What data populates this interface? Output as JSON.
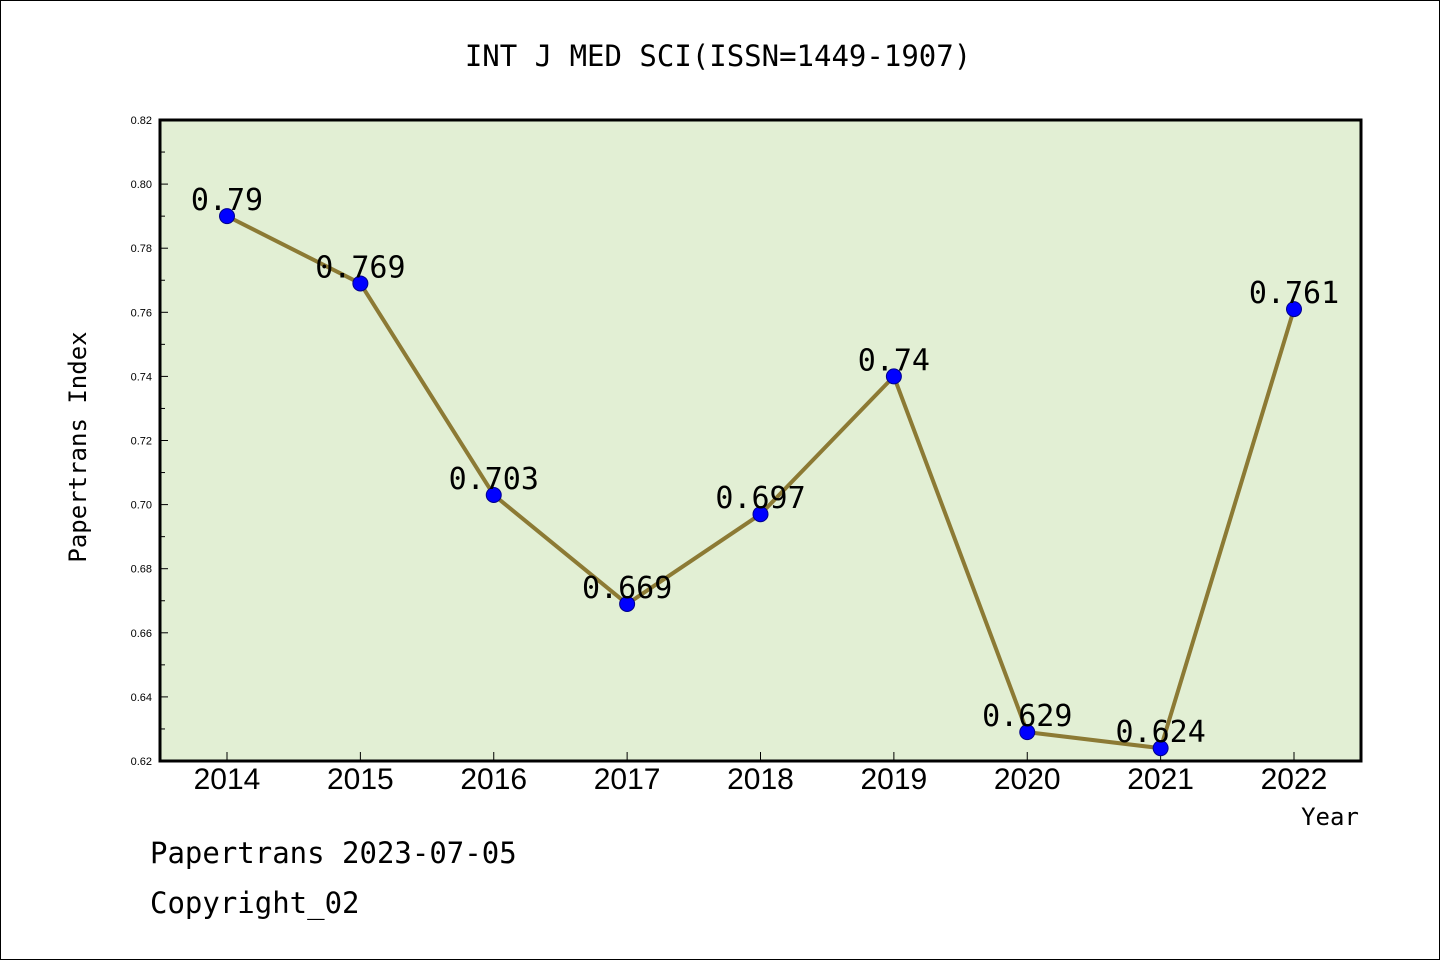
{
  "chart_data": {
    "type": "line",
    "title": "INT J MED SCI(ISSN=1449-1907)",
    "xlabel": "Year",
    "ylabel": "Papertrans Index",
    "categories": [
      "2014",
      "2015",
      "2016",
      "2017",
      "2018",
      "2019",
      "2020",
      "2021",
      "2022"
    ],
    "values": [
      0.79,
      0.769,
      0.703,
      0.669,
      0.697,
      0.74,
      0.629,
      0.624,
      0.761
    ],
    "data_labels": [
      "0.79",
      "0.769",
      "0.703",
      "0.669",
      "0.697",
      "0.74",
      "0.629",
      "0.624",
      "0.761"
    ],
    "ylim": [
      0.62,
      0.82
    ],
    "yticks": [
      "0.62",
      "0.64",
      "0.66",
      "0.68",
      "0.70",
      "0.72",
      "0.74",
      "0.76",
      "0.78",
      "0.80",
      "0.82"
    ],
    "grid": false,
    "colors": {
      "plot_background": "#e2efd4",
      "line": "#8c7a34",
      "marker": "#0000ff"
    }
  },
  "footer": {
    "line1": "Papertrans 2023-07-05",
    "line2": "Copyright_02"
  }
}
